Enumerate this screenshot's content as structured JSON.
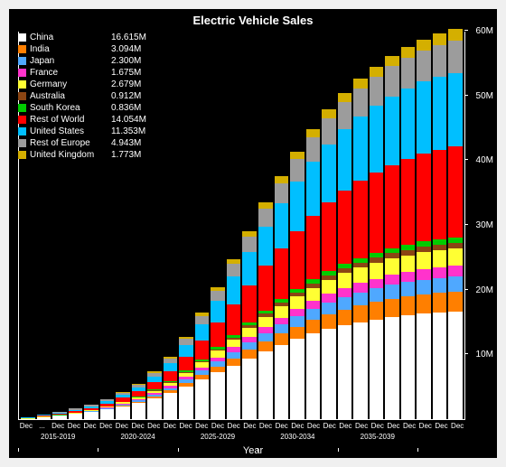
{
  "chart": {
    "type": "stacked-bar",
    "title": "Electric Vehicle Sales",
    "xlabel": "Year",
    "background_color": "#000000",
    "text_color": "#ffffff",
    "title_fontsize": 13,
    "label_fontsize": 10,
    "ylim": [
      0,
      60
    ],
    "yticks": [
      10,
      20,
      30,
      40,
      50,
      60
    ],
    "ytick_labels": [
      "10M",
      "20M",
      "30M",
      "40M",
      "50M",
      "60M"
    ],
    "series": [
      {
        "name": "China",
        "value_label": "16.615M",
        "color": "#ffffff"
      },
      {
        "name": "India",
        "value_label": "3.094M",
        "color": "#ff7f00"
      },
      {
        "name": "Japan",
        "value_label": "2.300M",
        "color": "#4fa8ff"
      },
      {
        "name": "France",
        "value_label": "1.675M",
        "color": "#ff33cc"
      },
      {
        "name": "Germany",
        "value_label": "2.679M",
        "color": "#ffff33"
      },
      {
        "name": "Australia",
        "value_label": "0.912M",
        "color": "#8b4513"
      },
      {
        "name": "South Korea",
        "value_label": "0.836M",
        "color": "#00cc00"
      },
      {
        "name": "Rest of World",
        "value_label": "14.054M",
        "color": "#ff0000"
      },
      {
        "name": "United States",
        "value_label": "11.353M",
        "color": "#00bfff"
      },
      {
        "name": "Rest of Europe",
        "value_label": "4.943M",
        "color": "#9c9c9c"
      },
      {
        "name": "United Kingdom",
        "value_label": "1.773M",
        "color": "#d4af00"
      }
    ],
    "bars": [
      {
        "China": 0.05,
        "India": 0.01,
        "Japan": 0.01,
        "France": 0.005,
        "Germany": 0.01,
        "Australia": 0.005,
        "South Korea": 0.005,
        "Rest of World": 0.05,
        "United States": 0.1,
        "Rest of Europe": 0.03,
        "United Kingdom": 0.005
      },
      {
        "China": 0.3,
        "India": 0.02,
        "Japan": 0.02,
        "France": 0.01,
        "Germany": 0.03,
        "Australia": 0.01,
        "South Korea": 0.01,
        "Rest of World": 0.1,
        "United States": 0.15,
        "Rest of Europe": 0.06,
        "United Kingdom": 0.01
      },
      {
        "China": 0.5,
        "India": 0.03,
        "Japan": 0.03,
        "France": 0.02,
        "Germany": 0.04,
        "Australia": 0.01,
        "South Korea": 0.02,
        "Rest of World": 0.15,
        "United States": 0.2,
        "Rest of Europe": 0.1,
        "United Kingdom": 0.02
      },
      {
        "China": 0.8,
        "India": 0.04,
        "Japan": 0.04,
        "France": 0.03,
        "Germany": 0.06,
        "Australia": 0.02,
        "South Korea": 0.03,
        "Rest of World": 0.2,
        "United States": 0.25,
        "Rest of Europe": 0.15,
        "United Kingdom": 0.03
      },
      {
        "China": 1.1,
        "India": 0.05,
        "Japan": 0.05,
        "France": 0.04,
        "Germany": 0.1,
        "Australia": 0.02,
        "South Korea": 0.04,
        "Rest of World": 0.3,
        "United States": 0.3,
        "Rest of Europe": 0.2,
        "United Kingdom": 0.05
      },
      {
        "China": 1.5,
        "India": 0.1,
        "Japan": 0.1,
        "France": 0.06,
        "Germany": 0.15,
        "Australia": 0.03,
        "South Korea": 0.05,
        "Rest of World": 0.45,
        "United States": 0.35,
        "Rest of Europe": 0.25,
        "United Kingdom": 0.07
      },
      {
        "China": 2.0,
        "India": 0.15,
        "Japan": 0.15,
        "France": 0.1,
        "Germany": 0.2,
        "Australia": 0.04,
        "South Korea": 0.08,
        "Rest of World": 0.6,
        "United States": 0.45,
        "Rest of Europe": 0.3,
        "United Kingdom": 0.1
      },
      {
        "China": 2.5,
        "India": 0.2,
        "Japan": 0.2,
        "France": 0.15,
        "Germany": 0.3,
        "Australia": 0.06,
        "South Korea": 0.1,
        "Rest of World": 0.8,
        "United States": 0.6,
        "Rest of Europe": 0.4,
        "United Kingdom": 0.15
      },
      {
        "China": 3.2,
        "India": 0.3,
        "Japan": 0.3,
        "France": 0.2,
        "Germany": 0.4,
        "Australia": 0.08,
        "South Korea": 0.13,
        "Rest of World": 1.1,
        "United States": 0.9,
        "Rest of Europe": 0.55,
        "United Kingdom": 0.2
      },
      {
        "China": 4.0,
        "India": 0.4,
        "Japan": 0.4,
        "France": 0.3,
        "Germany": 0.5,
        "Australia": 0.1,
        "South Korea": 0.17,
        "Rest of World": 1.5,
        "United States": 1.3,
        "Rest of Europe": 0.7,
        "United Kingdom": 0.28
      },
      {
        "China": 5.0,
        "India": 0.55,
        "Japan": 0.55,
        "France": 0.4,
        "Germany": 0.65,
        "Australia": 0.15,
        "South Korea": 0.22,
        "Rest of World": 2.1,
        "United States": 1.8,
        "Rest of Europe": 0.95,
        "United Kingdom": 0.38
      },
      {
        "China": 6.1,
        "India": 0.7,
        "Japan": 0.7,
        "France": 0.5,
        "Germany": 0.8,
        "Australia": 0.2,
        "South Korea": 0.28,
        "Rest of World": 2.9,
        "United States": 2.5,
        "Rest of Europe": 1.25,
        "United Kingdom": 0.5
      },
      {
        "China": 7.2,
        "India": 0.9,
        "Japan": 0.85,
        "France": 0.6,
        "Germany": 1.0,
        "Australia": 0.26,
        "South Korea": 0.33,
        "Rest of World": 3.8,
        "United States": 3.3,
        "Rest of Europe": 1.6,
        "United Kingdom": 0.6
      },
      {
        "China": 8.3,
        "India": 1.1,
        "Japan": 1.0,
        "France": 0.7,
        "Germany": 1.2,
        "Australia": 0.32,
        "South Korea": 0.38,
        "Rest of World": 4.8,
        "United States": 4.2,
        "Rest of Europe": 1.95,
        "United Kingdom": 0.72
      },
      {
        "China": 9.4,
        "India": 1.3,
        "Japan": 1.15,
        "France": 0.82,
        "Germany": 1.4,
        "Australia": 0.4,
        "South Korea": 0.43,
        "Rest of World": 5.8,
        "United States": 5.1,
        "Rest of Europe": 2.35,
        "United Kingdom": 0.85
      },
      {
        "China": 10.5,
        "India": 1.5,
        "Japan": 1.3,
        "France": 0.93,
        "Germany": 1.6,
        "Australia": 0.47,
        "South Korea": 0.48,
        "Rest of World": 6.9,
        "United States": 6.1,
        "Rest of Europe": 2.75,
        "United Kingdom": 0.98
      },
      {
        "China": 11.5,
        "India": 1.7,
        "Japan": 1.45,
        "France": 1.05,
        "Germany": 1.75,
        "Australia": 0.53,
        "South Korea": 0.53,
        "Rest of World": 7.9,
        "United States": 6.9,
        "Rest of Europe": 3.1,
        "United Kingdom": 1.1
      },
      {
        "China": 12.4,
        "India": 1.9,
        "Japan": 1.6,
        "France": 1.15,
        "Germany": 1.9,
        "Australia": 0.6,
        "South Korea": 0.58,
        "Rest of World": 8.9,
        "United States": 7.7,
        "Rest of Europe": 3.45,
        "United Kingdom": 1.2
      },
      {
        "China": 13.2,
        "India": 2.1,
        "Japan": 1.7,
        "France": 1.25,
        "Germany": 2.05,
        "Australia": 0.65,
        "South Korea": 0.62,
        "Rest of World": 9.8,
        "United States": 8.4,
        "Rest of Europe": 3.75,
        "United Kingdom": 1.3
      },
      {
        "China": 13.9,
        "India": 2.3,
        "Japan": 1.82,
        "France": 1.33,
        "Germany": 2.18,
        "Australia": 0.7,
        "South Korea": 0.66,
        "Rest of World": 10.6,
        "United States": 9.0,
        "Rest of Europe": 4.0,
        "United Kingdom": 1.4
      },
      {
        "China": 14.5,
        "India": 2.45,
        "Japan": 1.92,
        "France": 1.4,
        "Germany": 2.28,
        "Australia": 0.74,
        "South Korea": 0.7,
        "Rest of World": 11.3,
        "United States": 9.5,
        "Rest of Europe": 4.2,
        "United Kingdom": 1.46
      },
      {
        "China": 15.0,
        "India": 2.58,
        "Japan": 2.0,
        "France": 1.46,
        "Germany": 2.36,
        "Australia": 0.78,
        "South Korea": 0.73,
        "Rest of World": 11.9,
        "United States": 9.95,
        "Rest of Europe": 4.38,
        "United Kingdom": 1.52
      },
      {
        "China": 15.4,
        "India": 2.7,
        "Japan": 2.07,
        "France": 1.51,
        "Germany": 2.43,
        "Australia": 0.81,
        "South Korea": 0.755,
        "Rest of World": 12.4,
        "United States": 10.3,
        "Rest of Europe": 4.52,
        "United Kingdom": 1.58
      },
      {
        "China": 15.8,
        "India": 2.8,
        "Japan": 2.13,
        "France": 1.56,
        "Germany": 2.5,
        "Australia": 0.84,
        "South Korea": 0.78,
        "Rest of World": 12.85,
        "United States": 10.63,
        "Rest of Europe": 4.65,
        "United Kingdom": 1.63
      },
      {
        "China": 16.1,
        "India": 2.88,
        "Japan": 2.18,
        "France": 1.59,
        "Germany": 2.55,
        "Australia": 0.86,
        "South Korea": 0.8,
        "Rest of World": 13.25,
        "United States": 10.9,
        "Rest of Europe": 4.72,
        "United Kingdom": 1.67
      },
      {
        "China": 16.35,
        "India": 2.96,
        "Japan": 2.23,
        "France": 1.62,
        "Germany": 2.6,
        "Australia": 0.88,
        "South Korea": 0.81,
        "Rest of World": 13.6,
        "United States": 11.1,
        "Rest of Europe": 4.82,
        "United Kingdom": 1.71
      },
      {
        "China": 16.5,
        "India": 3.03,
        "Japan": 2.26,
        "France": 1.65,
        "Germany": 2.64,
        "Australia": 0.9,
        "South Korea": 0.825,
        "Rest of World": 13.85,
        "United States": 11.25,
        "Rest of Europe": 4.89,
        "United Kingdom": 1.75
      },
      {
        "China": 16.615,
        "India": 3.094,
        "Japan": 2.3,
        "France": 1.675,
        "Germany": 2.679,
        "Australia": 0.912,
        "South Korea": 0.836,
        "Rest of World": 14.054,
        "United States": 11.353,
        "Rest of Europe": 4.943,
        "United Kingdom": 1.773
      }
    ],
    "xgroups": [
      {
        "label": "2015-2019",
        "span": [
          0,
          4
        ]
      },
      {
        "label": "2020-2024",
        "span": [
          5,
          9
        ]
      },
      {
        "label": "2025-2029",
        "span": [
          10,
          14
        ]
      },
      {
        "label": "2030-2034",
        "span": [
          15,
          19
        ]
      },
      {
        "label": "2035-2039",
        "span": [
          20,
          24
        ]
      }
    ],
    "xtick_label": "Dec"
  }
}
